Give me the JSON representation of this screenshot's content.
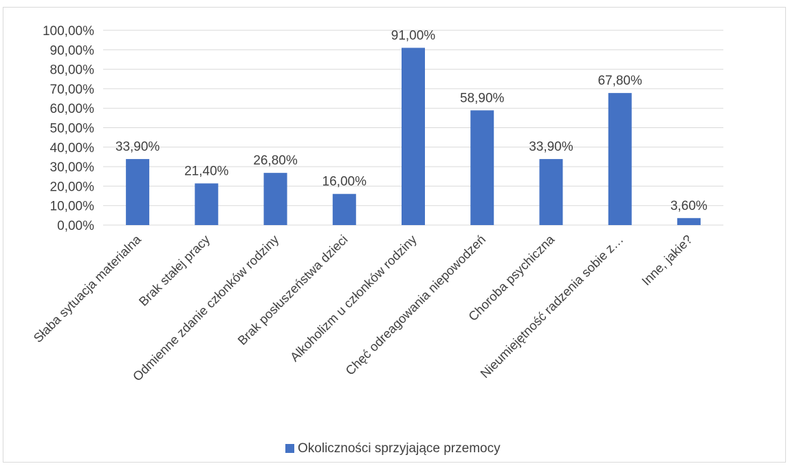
{
  "chart_data": {
    "type": "bar",
    "categories": [
      "Słaba sytuacja materialna",
      "Brak stałej pracy",
      "Odmienne zdanie członków rodziny",
      "Brak posłuszeństwa dzieci",
      "Alkoholizm u członków rodziny",
      "Chęć odreagowania niepowodzeń",
      "Choroba psychiczna",
      "Nieumiejętność radzenia sobie z…",
      "Inne, jakie?"
    ],
    "series": [
      {
        "name": "Okoliczności sprzyjające przemocy",
        "values": [
          33.9,
          21.4,
          26.8,
          16.0,
          91.0,
          58.9,
          33.9,
          67.8,
          3.6
        ],
        "data_labels": [
          "33,90%",
          "21,40%",
          "26,80%",
          "16,00%",
          "91,00%",
          "58,90%",
          "33,90%",
          "67,80%",
          "3,60%"
        ],
        "color": "#4472c4"
      }
    ],
    "y_ticks": [
      "0,00%",
      "10,00%",
      "20,00%",
      "30,00%",
      "40,00%",
      "50,00%",
      "60,00%",
      "70,00%",
      "80,00%",
      "90,00%",
      "100,00%"
    ],
    "ylim": [
      0,
      100
    ],
    "grid": true,
    "gridline_color": "#d9d9d9",
    "legend_position": "bottom",
    "title": "",
    "xlabel": "",
    "ylabel": ""
  }
}
